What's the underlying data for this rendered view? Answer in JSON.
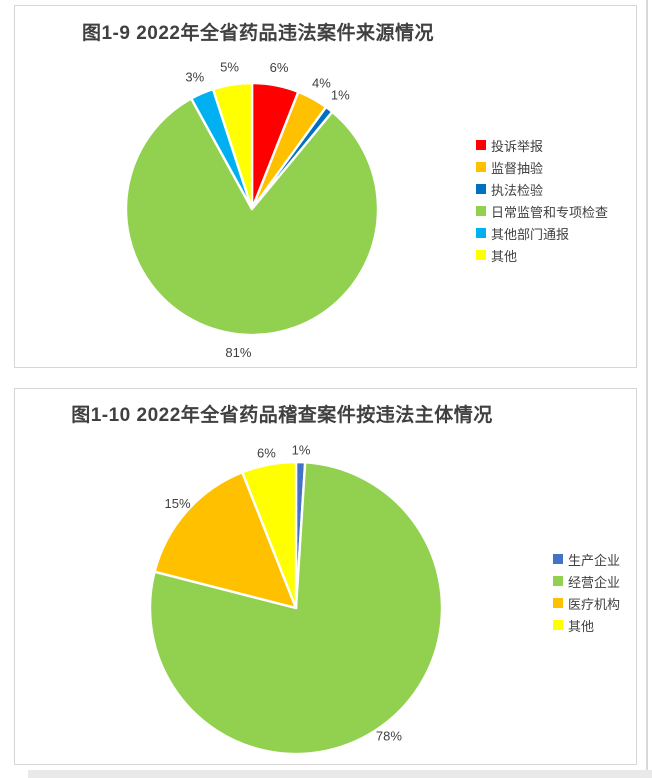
{
  "page": {
    "background": "#ffffff",
    "panel_border_color": "#d6d6d6",
    "text_color": "#404040"
  },
  "charts": [
    {
      "chart_data": {
        "type": "pie",
        "title": "图1-9  2022年全省药品违法案件来源情况",
        "legend_position": "right",
        "start_angle_deg": 0,
        "direction": "clockwise",
        "data_labels": "outside-percent",
        "series": [
          {
            "label": "投诉举报",
            "value": 6,
            "percent_label": "6%",
            "color": "#ff0000"
          },
          {
            "label": "监督抽验",
            "value": 4,
            "percent_label": "4%",
            "color": "#ffc000"
          },
          {
            "label": "执法检验",
            "value": 1,
            "percent_label": "1%",
            "color": "#0070c0"
          },
          {
            "label": "日常监管和专项检查",
            "value": 81,
            "percent_label": "81%",
            "color": "#92d050"
          },
          {
            "label": "其他部门通报",
            "value": 3,
            "percent_label": "3%",
            "color": "#00b0f0"
          },
          {
            "label": "其他",
            "value": 5,
            "percent_label": "5%",
            "color": "#ffff00"
          }
        ]
      }
    },
    {
      "chart_data": {
        "type": "pie",
        "title": "图1-10  2022年全省药品稽查案件按违法主体情况",
        "legend_position": "right",
        "start_angle_deg": 0,
        "direction": "clockwise",
        "data_labels": "outside-percent",
        "series": [
          {
            "label": "生产企业",
            "value": 1,
            "percent_label": "1%",
            "color": "#4472c4"
          },
          {
            "label": "经营企业",
            "value": 78,
            "percent_label": "78%",
            "color": "#92d050"
          },
          {
            "label": "医疗机构",
            "value": 15,
            "percent_label": "15%",
            "color": "#ffc000"
          },
          {
            "label": "其他",
            "value": 6,
            "percent_label": "6%",
            "color": "#ffff00"
          }
        ]
      }
    }
  ]
}
